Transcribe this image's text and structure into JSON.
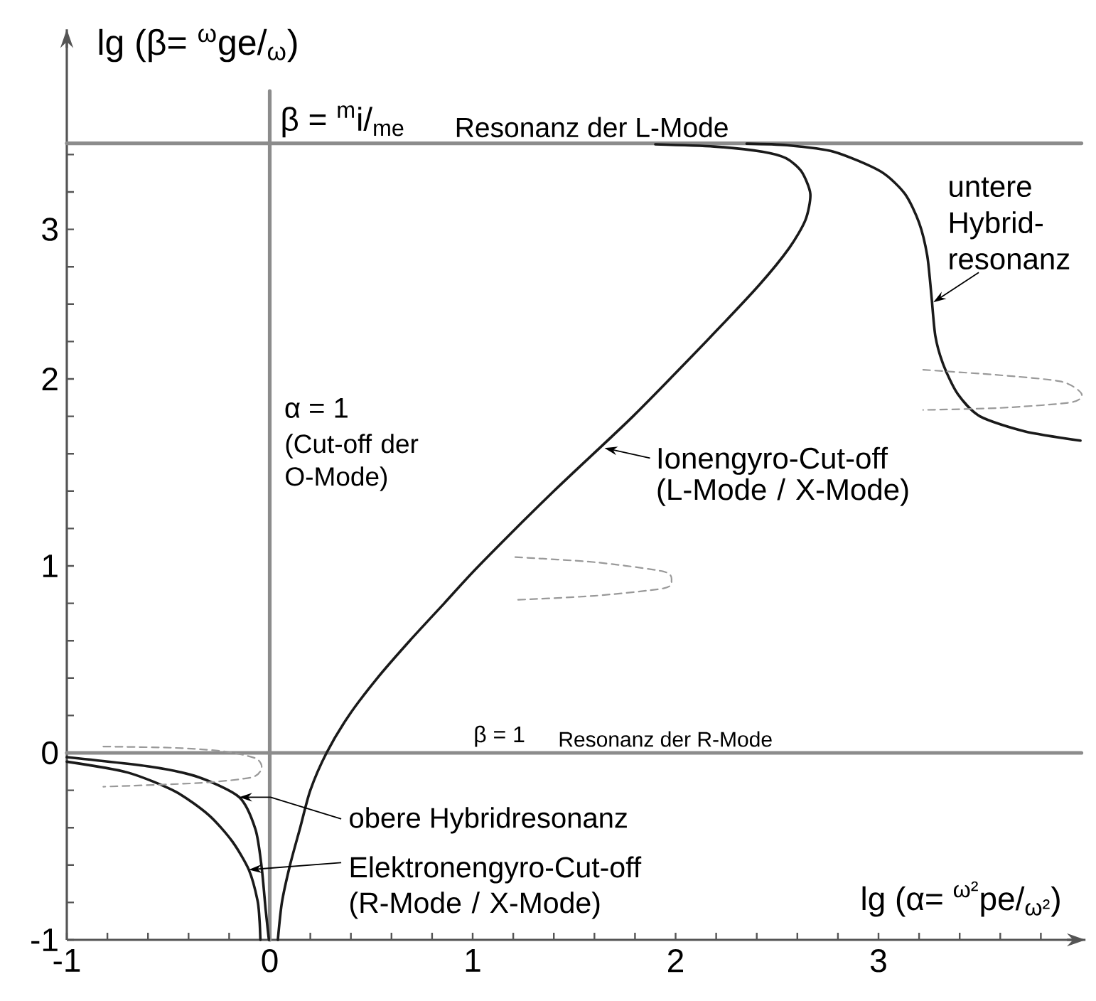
{
  "chart_data": {
    "type": "line",
    "xlabel": "lg (α= $^{ω²}$pe/$_{ω²}$)",
    "ylabel": "lg (β= $^{ω}$ge/$_{ω}$)",
    "xlim": [
      -1,
      4.02
    ],
    "ylim": [
      -1,
      3.87
    ],
    "xticks": [
      -1,
      {
        "value": -0.8,
        "label": null
      },
      {
        "value": -0.6,
        "label": null
      },
      {
        "value": -0.4,
        "label": null
      },
      {
        "value": -0.2,
        "label": null
      },
      0,
      {
        "value": 0.2,
        "label": null
      },
      {
        "value": 0.4,
        "label": null
      },
      {
        "value": 0.6,
        "label": null
      },
      {
        "value": 0.8,
        "label": null
      },
      1,
      {
        "value": 1.2,
        "label": null
      },
      {
        "value": 1.4,
        "label": null
      },
      {
        "value": 1.6,
        "label": null
      },
      {
        "value": 1.8,
        "label": null
      },
      2,
      {
        "value": 2.2,
        "label": null
      },
      {
        "value": 2.4,
        "label": null
      },
      {
        "value": 2.6,
        "label": null
      },
      {
        "value": 2.8,
        "label": null
      },
      3,
      {
        "value": 3.2,
        "label": null
      },
      {
        "value": 3.4,
        "label": null
      },
      {
        "value": 3.6,
        "label": null
      },
      {
        "value": 3.8,
        "label": null
      }
    ],
    "yticks": [
      -1,
      {
        "value": -0.8,
        "label": null
      },
      {
        "value": -0.6,
        "label": null
      },
      {
        "value": -0.4,
        "label": null
      },
      {
        "value": -0.2,
        "label": null
      },
      0,
      {
        "value": 0.2,
        "label": null
      },
      {
        "value": 0.4,
        "label": null
      },
      {
        "value": 0.6,
        "label": null
      },
      {
        "value": 0.8,
        "label": null
      },
      1,
      {
        "value": 1.2,
        "label": null
      },
      {
        "value": 1.4,
        "label": null
      },
      {
        "value": 1.6,
        "label": null
      },
      {
        "value": 1.8,
        "label": null
      },
      2,
      {
        "value": 2.2,
        "label": null
      },
      {
        "value": 2.4,
        "label": null
      },
      {
        "value": 2.6,
        "label": null
      },
      {
        "value": 2.8,
        "label": "3"
      },
      {
        "value": 3,
        "label": null
      },
      {
        "value": 3.2,
        "label": null
      }
    ],
    "series": [
      {
        "name": "β = $^{m}$i/$_{me}$",
        "color": "#8c8c8c",
        "x": [
          -1,
          4.0
        ],
        "values": [
          3.26,
          3.26
        ]
      },
      {
        "name": "β = 1",
        "color": "#8c8c8c",
        "x": [
          -1,
          4.0
        ],
        "values": [
          0,
          0
        ]
      },
      {
        "name": "α = 1",
        "color": "#8c8c8c",
        "x": [
          0,
          0
        ],
        "values": [
          -1,
          3.54
        ]
      },
      {
        "color": "#1a1a1a",
        "x": [
          0.04,
          0.06,
          0.1,
          0.15,
          0.2,
          0.28,
          0.39,
          0.53,
          0.69,
          0.86,
          1.03,
          1.4,
          1.79,
          2.15,
          2.41,
          2.56,
          2.64,
          2.664,
          2.62,
          2.545,
          2.43,
          2.19,
          1.9
        ],
        "values": [
          -1,
          -0.8,
          -0.6,
          -0.4,
          -0.2,
          0,
          0.2,
          0.4,
          0.6,
          0.8,
          1.0,
          1.4,
          1.8,
          2.2,
          2.5,
          2.7,
          2.85,
          2.99,
          3.11,
          3.18,
          3.215,
          3.243,
          3.255
        ]
      },
      {
        "color": "#1a1a1a",
        "x": [
          2.35,
          2.55,
          2.78,
          3.01,
          3.13,
          3.2,
          3.24,
          3.26,
          3.28,
          3.32,
          3.39,
          3.5,
          3.72,
          3.995
        ],
        "values": [
          3.258,
          3.25,
          3.215,
          3.11,
          2.99,
          2.835,
          2.66,
          2.455,
          2.23,
          2.075,
          1.92,
          1.8,
          1.72,
          1.67
        ]
      },
      {
        "color": "#1a1a1a",
        "x": [
          -1,
          -0.58,
          -0.35,
          -0.15,
          -0.07,
          -0.04,
          -0.02,
          -0.004
        ],
        "values": [
          -0.023,
          -0.075,
          -0.13,
          -0.237,
          -0.41,
          -0.61,
          -0.84,
          -1
        ]
      },
      {
        "color": "#1a1a1a",
        "x": [
          -1,
          -0.7,
          -0.465,
          -0.3,
          -0.185,
          -0.103,
          -0.06,
          -0.05,
          -0.046
        ],
        "values": [
          -0.047,
          -0.105,
          -0.207,
          -0.333,
          -0.473,
          -0.625,
          -0.79,
          -0.9,
          -1
        ]
      },
      {
        "color": "#999999",
        "line_style": "dashed",
        "x": [
          -0.82,
          -0.47,
          -0.23,
          -0.07,
          -0.04,
          -0.09,
          -0.35,
          -0.82
        ],
        "values": [
          0.034,
          0.027,
          0.009,
          -0.029,
          -0.08,
          -0.131,
          -0.161,
          -0.181
        ]
      },
      {
        "color": "#999999",
        "line_style": "dashed",
        "x": [
          1.21,
          1.6,
          1.94,
          1.98,
          1.94,
          1.6,
          1.21
        ],
        "values": [
          1.047,
          1.02,
          0.97,
          0.92,
          0.88,
          0.84,
          0.818
        ]
      },
      {
        "color": "#999999",
        "line_style": "dashed",
        "x": [
          3.22,
          3.6,
          3.9,
          4.0,
          3.95,
          3.6,
          3.22
        ],
        "values": [
          2.049,
          2.02,
          1.986,
          1.922,
          1.875,
          1.845,
          1.834
        ]
      }
    ],
    "annotations": [
      {
        "text": "Resonanz der L-Mode",
        "x": 0.91,
        "y": 3.26
      },
      {
        "text": "Resonanz der R-Mode",
        "x": 1.42,
        "y": 0
      },
      "(Cut-off der O-Mode)",
      {
        "text": "Ionengyro-Cut-off (L-Mode / X-Mode)",
        "x": 1.65,
        "y": 1.63
      },
      {
        "text": "untere Hybrid-resonanz",
        "x": 3.27,
        "y": 2.41
      },
      {
        "text": "obere Hybridresonanz",
        "x": -0.15,
        "y": -0.237
      },
      {
        "text": "Elektronengyro-Cut-off (R-Mode / X-Mode)",
        "x": -0.103,
        "y": -0.625
      }
    ]
  }
}
